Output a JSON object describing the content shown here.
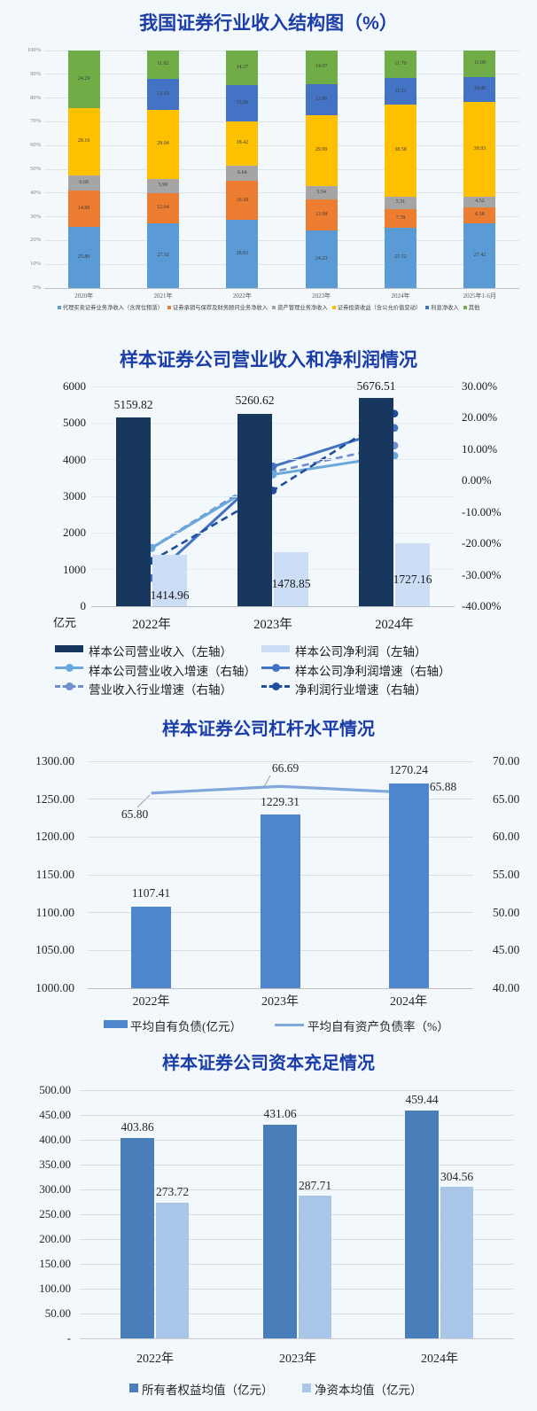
{
  "page": {
    "background": "#f3f8fc",
    "title_color": "#1b3da8"
  },
  "chart_data": [
    {
      "id": "industry-income-structure",
      "type": "bar",
      "subtype": "stacked-100",
      "title": "我国证券行业收入结构图（%）",
      "categories": [
        "2020年",
        "2021年",
        "2022年",
        "2023年",
        "2024年",
        "2025年1-6月"
      ],
      "y_ticks": [
        "100%",
        "90%",
        "80%",
        "70%",
        "60%",
        "50%",
        "40%",
        "30%",
        "20%",
        "10%",
        "0%"
      ],
      "ylim": [
        0,
        100
      ],
      "grid": true,
      "legend_position": "bottom",
      "series": [
        {
          "name": "代理买卖证券业务净收入（含席位租赁）",
          "color": "#5B9BD5",
          "values": [
            25.89,
            27.32,
            28.83,
            24.23,
            25.52,
            27.42
          ]
        },
        {
          "name": "证券承销与保荐及财务顾问业务净收入",
          "color": "#ED7D31",
          "values": [
            14.99,
            12.64,
            16.18,
            13.08,
            7.78,
            6.58
          ]
        },
        {
          "name": "资产管理业务净收入",
          "color": "#A5A5A5",
          "values": [
            6.68,
            5.99,
            6.64,
            5.54,
            5.31,
            4.52
          ]
        },
        {
          "name": "证券投资收益（含公允价值变动）",
          "color": "#FFC000",
          "values": [
            28.16,
            29.04,
            18.42,
            29.99,
            38.58,
            39.93
          ]
        },
        {
          "name": "利息净收入",
          "color": "#4472C4",
          "values": [
            0,
            13.19,
            15.56,
            13.09,
            11.11,
            10.45
          ]
        },
        {
          "name": "其他",
          "color": "#70AD47",
          "values": [
            24.29,
            11.82,
            14.37,
            14.07,
            11.7,
            11.09
          ]
        }
      ]
    },
    {
      "id": "sample-revenue-profit",
      "type": "bar",
      "subtype": "combo-dual-axis",
      "title": "样本证券公司营业收入和净利润情况",
      "unit_label": "亿元",
      "categories": [
        "2022年",
        "2023年",
        "2024年"
      ],
      "left_axis": {
        "min": 0,
        "max": 6000,
        "ticks": [
          "6000",
          "5000",
          "4000",
          "3000",
          "2000",
          "1000",
          "0"
        ]
      },
      "right_axis": {
        "min": -40,
        "max": 30,
        "ticks": [
          "30.00%",
          "20.00%",
          "10.00%",
          "0.00%",
          "-10.00%",
          "-20.00%",
          "-30.00%",
          "-40.00%"
        ]
      },
      "bar_series": [
        {
          "name": "样本公司营业收入（左轴）",
          "color": "#17375E",
          "values": [
            5159.82,
            5260.62,
            5676.51
          ],
          "labels": [
            "5159.82",
            "5260.62",
            "5676.51"
          ]
        },
        {
          "name": "样本公司净利润（左轴）",
          "color": "#CBDEF5",
          "values": [
            1414.96,
            1478.85,
            1727.16
          ],
          "labels": [
            "1414.96",
            "1478.85",
            "1727.16"
          ]
        }
      ],
      "line_series": [
        {
          "name": "样本公司营业收入增速（右轴）",
          "color": "#6AA7DB",
          "dashed": false,
          "values": [
            -21.5,
            1.95,
            7.91
          ]
        },
        {
          "name": "样本公司净利润增速（右轴）",
          "color": "#4472C4",
          "dashed": false,
          "values": [
            -31.0,
            4.52,
            16.79
          ]
        },
        {
          "name": "营业收入行业增速（右轴）",
          "color": "#6E8FCB",
          "dashed": true,
          "values": [
            -21.38,
            2.77,
            11.15
          ]
        },
        {
          "name": "净利润行业增速（右轴）",
          "color": "#1F4E9C",
          "dashed": true,
          "values": [
            -25.54,
            -3.14,
            21.35
          ]
        }
      ]
    },
    {
      "id": "sample-leverage",
      "type": "bar",
      "subtype": "bar-line-dual-axis",
      "title": "样本证券公司杠杆水平情况",
      "categories": [
        "2022年",
        "2023年",
        "2024年"
      ],
      "left_axis": {
        "min": 1000,
        "max": 1300,
        "ticks": [
          "1300.00",
          "1250.00",
          "1200.00",
          "1150.00",
          "1100.00",
          "1050.00",
          "1000.00"
        ]
      },
      "right_axis": {
        "min": 40,
        "max": 70,
        "ticks": [
          "70.00",
          "65.00",
          "60.00",
          "55.00",
          "50.00",
          "45.00",
          "40.00"
        ]
      },
      "bar_series": {
        "name": "平均自有负债(亿元）",
        "color": "#4E86CE",
        "values": [
          1107.41,
          1229.31,
          1270.24
        ],
        "labels": [
          "1107.41",
          "1229.31",
          "1270.24"
        ]
      },
      "line_series": {
        "name": "平均自有资产负债率（%）",
        "color": "#82A7DA",
        "values": [
          65.8,
          66.69,
          65.88
        ],
        "labels": [
          "65.80",
          "66.69",
          "65.88"
        ]
      }
    },
    {
      "id": "sample-capital-adequacy",
      "type": "bar",
      "subtype": "grouped",
      "title": "样本证券公司资本充足情况",
      "categories": [
        "2022年",
        "2023年",
        "2024年"
      ],
      "y_ticks": [
        "500.00",
        "450.00",
        "400.00",
        "350.00",
        "300.00",
        "250.00",
        "200.00",
        "150.00",
        "100.00",
        "50.00",
        "-"
      ],
      "ylim": [
        0,
        500
      ],
      "series": [
        {
          "name": "所有者权益均值（亿元）",
          "color": "#4A7EBB",
          "values": [
            403.86,
            431.06,
            459.44
          ],
          "labels": [
            "403.86",
            "431.06",
            "459.44"
          ]
        },
        {
          "name": "净资本均值（亿元）",
          "color": "#A9C6E8",
          "values": [
            273.72,
            287.71,
            304.56
          ],
          "labels": [
            "273.72",
            "287.71",
            "304.56"
          ]
        }
      ]
    }
  ]
}
